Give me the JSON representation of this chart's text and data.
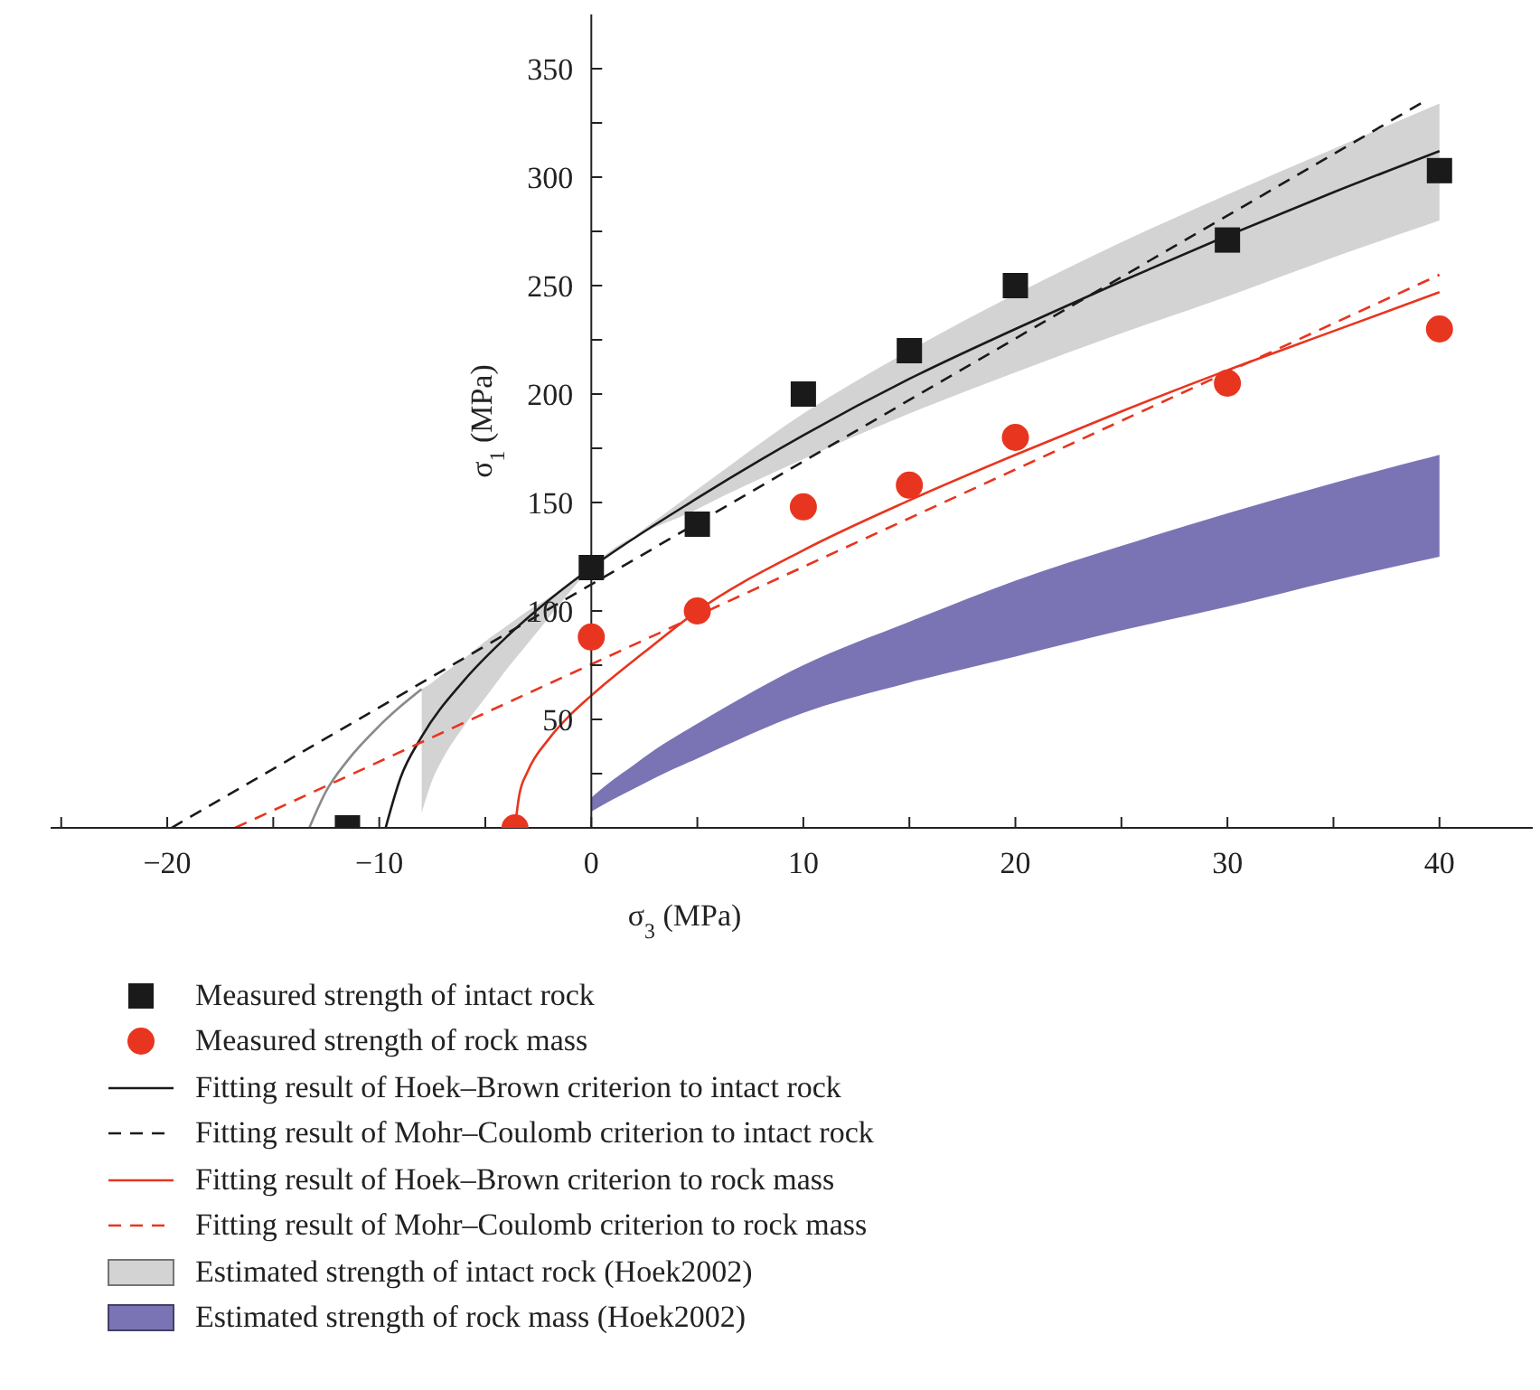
{
  "chart_data": {
    "type": "line",
    "xlabel": "σ$_{3}$ (MPa)",
    "ylabel": "σ$_{1}$ (MPa)",
    "xlim": [
      -25.5,
      44.4
    ],
    "ylim": [
      0,
      375
    ],
    "xticks": [
      {
        "value": -25,
        "label": null
      },
      -20,
      {
        "value": -15,
        "label": null
      },
      -10,
      {
        "value": -5,
        "label": null
      },
      0,
      {
        "value": 5,
        "label": null
      },
      10,
      {
        "value": 15,
        "label": null
      },
      20,
      {
        "value": 25,
        "label": null
      },
      30,
      {
        "value": 35,
        "label": null
      },
      40
    ],
    "yticks": [
      {
        "value": 25,
        "label": null
      },
      50,
      {
        "value": 75,
        "label": null
      },
      100,
      {
        "value": 125,
        "label": null
      },
      150,
      {
        "value": 175,
        "label": null
      },
      200,
      {
        "value": 225,
        "label": null
      },
      250,
      {
        "value": 275,
        "label": null
      },
      300,
      {
        "value": 325,
        "label": null
      },
      350
    ],
    "legend": "bottom",
    "series": [
      {
        "name": "Estimated strength of intact rock (Hoek2002)",
        "type": "area",
        "color": "#d3d3d3",
        "x": [
          -8,
          -7.5,
          -7,
          -6,
          -5,
          -4,
          -3,
          -2,
          -1,
          0,
          5,
          10,
          15,
          20,
          25,
          30,
          35,
          40
        ],
        "values": [
          null,
          null,
          null,
          null,
          null,
          null,
          null,
          null,
          null,
          null,
          null,
          null,
          null,
          null,
          null,
          null,
          null,
          null
        ],
        "upper": [
          64,
          67,
          71,
          78,
          86,
          93,
          100,
          106,
          113,
          120,
          156,
          191,
          220,
          246,
          270,
          292,
          313,
          334
        ],
        "lower": [
          7,
          22,
          32,
          47,
          60,
          73,
          85,
          97,
          109,
          120,
          147,
          170,
          191,
          210,
          228,
          245,
          263,
          280
        ]
      },
      {
        "color": "#8a8a8a",
        "line_style": "solid",
        "x": [
          -13.3,
          -12.5,
          -11.5,
          -10,
          -9,
          -8
        ],
        "values": [
          0,
          17,
          31,
          47,
          56,
          64
        ]
      },
      {
        "name": "Estimated strength of rock mass (Hoek2002)",
        "type": "area",
        "color": "#7a74b5",
        "x": [
          0,
          1,
          2,
          3,
          5,
          10,
          15,
          20,
          25,
          30,
          35,
          40
        ],
        "values": [
          null,
          null,
          null,
          null,
          null,
          null,
          null,
          null,
          null,
          null,
          null,
          null
        ],
        "upper": [
          14,
          22,
          29,
          36,
          48,
          75,
          95,
          114,
          130,
          145,
          159,
          172
        ],
        "lower": [
          7.5,
          13,
          18,
          23,
          32,
          53,
          67,
          79,
          91,
          102,
          114,
          125
        ]
      },
      {
        "name": "Fitting result of Hoek–Brown criterion to intact rock",
        "color": "#1a1a1a",
        "line_style": "solid",
        "x": [
          -9.7,
          -9,
          -8,
          -6,
          -4,
          -2,
          0,
          5,
          10,
          15,
          20,
          25,
          30,
          35,
          40
        ],
        "values": [
          0,
          23,
          42,
          68,
          88,
          105,
          120,
          152,
          181,
          207,
          230,
          252,
          273,
          293,
          312
        ]
      },
      {
        "name": "Fitting result of Mohr–Coulomb criterion to intact rock",
        "color": "#1a1a1a",
        "line_style": "dashed",
        "x": [
          -19.8,
          39.3
        ],
        "values": [
          0,
          335
        ]
      },
      {
        "name": "Fitting result of Hoek–Brown criterion to rock mass",
        "color": "#e8351f",
        "line_style": "solid",
        "x": [
          -3.6,
          -3.4,
          -3,
          -2,
          -1,
          0,
          2.5,
          5,
          10,
          15,
          20,
          25,
          30,
          35,
          40
        ],
        "values": [
          0,
          15,
          26,
          41,
          52,
          61,
          81,
          100,
          128,
          151,
          172,
          192,
          211,
          229,
          247
        ]
      },
      {
        "name": "Fitting result of Mohr–Coulomb criterion to rock mass",
        "color": "#e8351f",
        "line_style": "dashed",
        "x": [
          -16.8,
          40
        ],
        "values": [
          0,
          255
        ]
      },
      {
        "name": "Measured strength of intact rock",
        "type": "scatter",
        "marker": "square",
        "color": "#1a1a1a",
        "x": [
          -11.5,
          0,
          5,
          10,
          15,
          20,
          30,
          40
        ],
        "values": [
          0,
          120,
          140,
          200,
          220,
          250,
          271,
          303
        ]
      },
      {
        "name": "Measured strength of rock mass",
        "type": "scatter",
        "marker": "circle",
        "color": "#e8351f",
        "x": [
          -3.6,
          0,
          5,
          10,
          15,
          20,
          30,
          40
        ],
        "values": [
          0,
          88,
          100,
          148,
          158,
          180,
          205,
          230
        ]
      }
    ]
  }
}
